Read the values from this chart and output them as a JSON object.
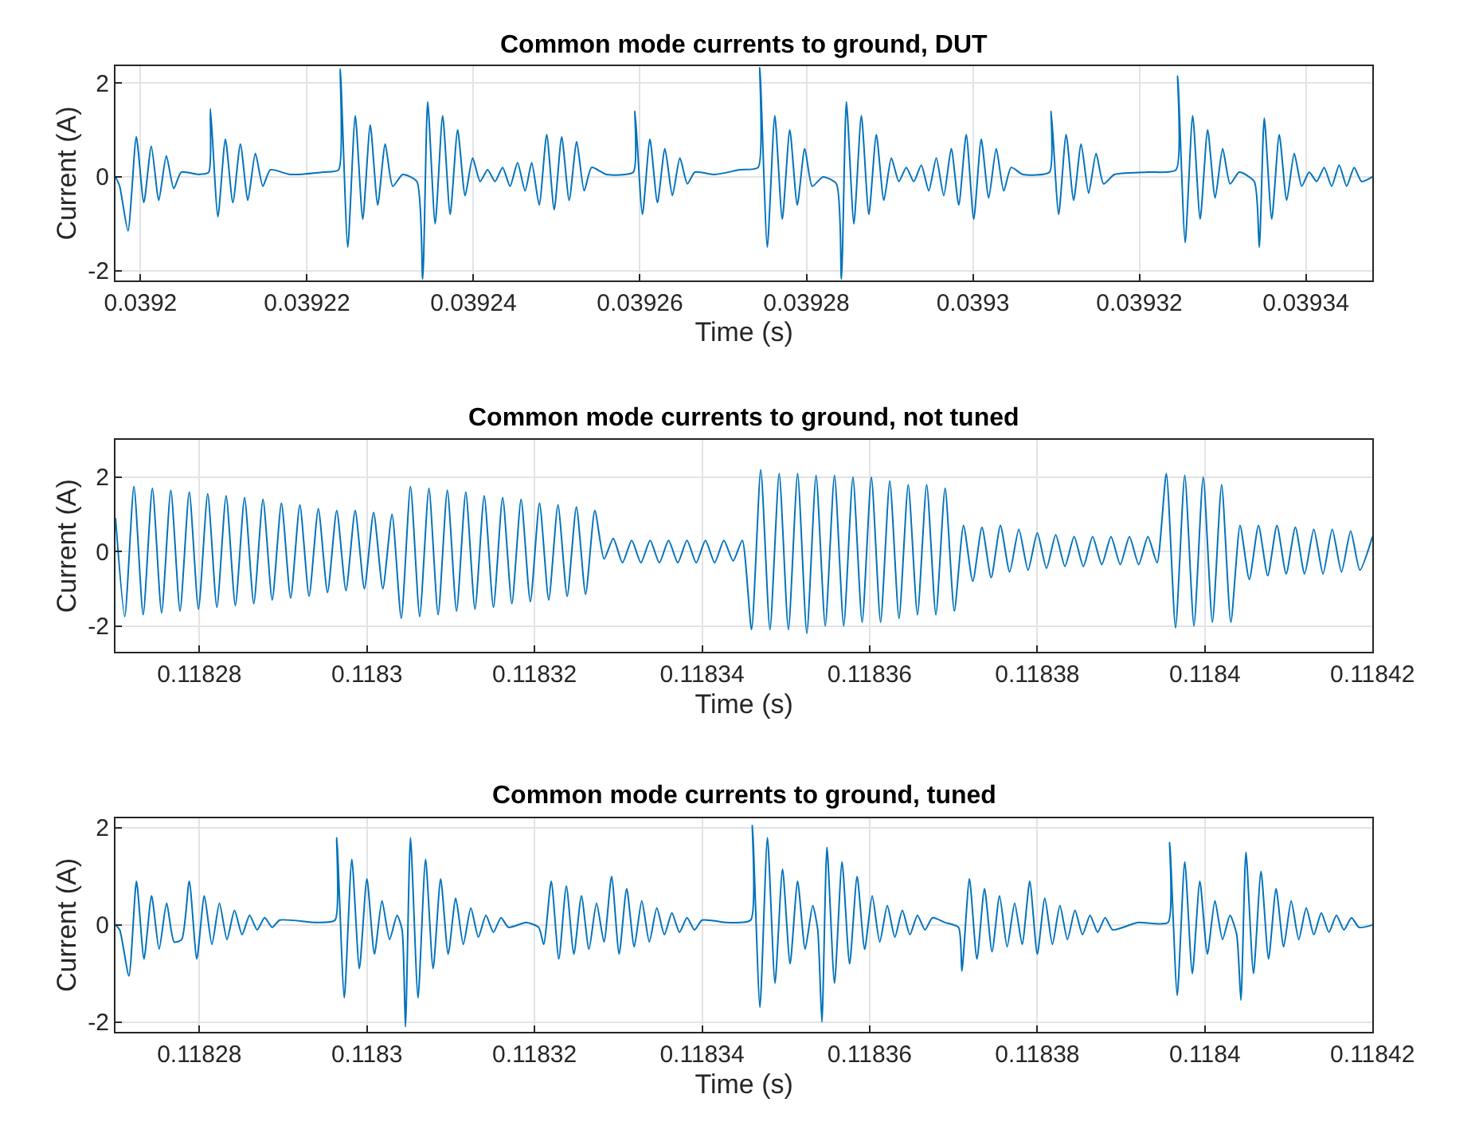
{
  "chart_data": [
    {
      "type": "line",
      "title": "Common mode currents to ground, DUT",
      "xlabel": "Time (s)",
      "ylabel": "Current (A)",
      "xlim": [
        0.039197,
        0.039348
      ],
      "ylim": [
        -2.2,
        2.35
      ],
      "xticks": [
        0.0392,
        0.03922,
        0.03924,
        0.03926,
        0.03928,
        0.0393,
        0.03932,
        0.03934
      ],
      "yticks": [
        -2,
        0,
        2
      ],
      "grid": true,
      "series": [
        {
          "color": "#0072bd",
          "x": [
            0.039197,
            0.0391975,
            0.0391985,
            0.0391995,
            0.0392004,
            0.0392013,
            0.0392022,
            0.0392031,
            0.039204,
            0.0392049,
            0.039207,
            0.0392082,
            0.0392084,
            0.0392093,
            0.0392102,
            0.0392111,
            0.039212,
            0.0392129,
            0.0392138,
            0.0392147,
            0.0392156,
            0.039218,
            0.039222,
            0.0392238,
            0.039224,
            0.0392249,
            0.0392258,
            0.0392267,
            0.0392276,
            0.0392285,
            0.0392294,
            0.0392303,
            0.0392315,
            0.0392332,
            0.0392339,
            0.0392345,
            0.0392354,
            0.0392363,
            0.0392372,
            0.0392381,
            0.039239,
            0.0392399,
            0.0392408,
            0.0392417,
            0.0392426,
            0.0392435,
            0.0392444,
            0.0392453,
            0.0392462,
            0.039247,
            0.0392479,
            0.0392488,
            0.0392497,
            0.0392506,
            0.0392515,
            0.0392524,
            0.0392533,
            0.0392542,
            0.039256,
            0.0392592,
            0.0392594,
            0.0392603,
            0.0392612,
            0.0392621,
            0.039263,
            0.0392639,
            0.0392648,
            0.0392657,
            0.0392666,
            0.039269,
            0.039272,
            0.0392742,
            0.0392744,
            0.0392753,
            0.0392762,
            0.0392771,
            0.039278,
            0.0392789,
            0.0392798,
            0.0392807,
            0.039282,
            0.0392836,
            0.0392842,
            0.0392848,
            0.0392857,
            0.0392866,
            0.0392875,
            0.0392884,
            0.0392893,
            0.0392902,
            0.0392911,
            0.039292,
            0.0392929,
            0.0392938,
            0.0392947,
            0.0392956,
            0.0392965,
            0.0392974,
            0.0392983,
            0.0392992,
            0.0393001,
            0.039301,
            0.0393019,
            0.0393028,
            0.0393037,
            0.0393046,
            0.039306,
            0.0393092,
            0.0393094,
            0.0393103,
            0.0393112,
            0.0393121,
            0.039313,
            0.0393139,
            0.0393148,
            0.0393157,
            0.039317,
            0.039321,
            0.0393244,
            0.0393246,
            0.0393255,
            0.0393264,
            0.0393273,
            0.0393282,
            0.0393291,
            0.03933,
            0.0393309,
            0.039332,
            0.0393338,
            0.0393344,
            0.039335,
            0.0393359,
            0.0393368,
            0.0393377,
            0.0393386,
            0.0393395,
            0.0393404,
            0.0393413,
            0.0393422,
            0.0393431,
            0.039344,
            0.0393449,
            0.0393458,
            0.0393467,
            0.039348
          ],
          "values": [
            0,
            -0.2,
            -1.15,
            0.85,
            -0.55,
            0.65,
            -0.5,
            0.45,
            -0.25,
            0.1,
            0.05,
            0.1,
            1.45,
            -0.85,
            0.8,
            -0.55,
            0.7,
            -0.5,
            0.5,
            -0.2,
            0.15,
            0.05,
            0.1,
            0.15,
            2.3,
            -1.5,
            1.3,
            -0.9,
            1.1,
            -0.6,
            0.7,
            -0.2,
            0.05,
            -0.1,
            -2.18,
            1.6,
            -1.0,
            1.3,
            -0.8,
            1.0,
            -0.4,
            0.4,
            -0.1,
            0.15,
            -0.1,
            0.2,
            -0.2,
            0.3,
            -0.3,
            0.3,
            -0.6,
            0.9,
            -0.7,
            0.85,
            -0.5,
            0.75,
            -0.3,
            0.2,
            0.05,
            0.1,
            1.4,
            -0.8,
            0.8,
            -0.55,
            0.6,
            -0.4,
            0.4,
            -0.15,
            0.1,
            0.05,
            0.15,
            0.2,
            2.33,
            -1.5,
            1.3,
            -0.9,
            1.0,
            -0.6,
            0.6,
            -0.2,
            0.0,
            -0.15,
            -2.18,
            1.6,
            -1.0,
            1.3,
            -0.8,
            0.9,
            -0.5,
            0.4,
            -0.1,
            0.2,
            -0.1,
            0.25,
            -0.3,
            0.4,
            -0.4,
            0.6,
            -0.6,
            0.9,
            -0.9,
            0.8,
            -0.45,
            0.6,
            -0.3,
            0.2,
            0.05,
            0.1,
            1.4,
            -0.8,
            0.9,
            -0.5,
            0.7,
            -0.35,
            0.5,
            -0.15,
            0.05,
            0.1,
            0.15,
            2.15,
            -1.4,
            1.3,
            -0.9,
            1.0,
            -0.45,
            0.6,
            -0.15,
            0.1,
            -0.1,
            -1.5,
            1.25,
            -0.9,
            0.9,
            -0.5,
            0.5,
            -0.2,
            0.1,
            -0.1,
            0.2,
            -0.2,
            0.25,
            -0.2,
            0.2,
            -0.1,
            0.0
          ]
        }
      ]
    },
    {
      "type": "line",
      "title": "Common mode currents to ground, not tuned",
      "xlabel": "Time (s)",
      "ylabel": "Current (A)",
      "xlim": [
        0.11827,
        0.11842
      ],
      "ylim": [
        -2.7,
        3
      ],
      "xticks": [
        0.11828,
        0.1183,
        0.11832,
        0.11834,
        0.11836,
        0.11838,
        0.1184,
        0.11842
      ],
      "yticks": [
        -2,
        0,
        2
      ],
      "grid": true,
      "series": [
        {
          "color": "#0072bd",
          "x": [
            0.11827,
            0.1182711,
            0.1182722,
            0.1182733,
            0.1182744,
            0.1182755,
            0.1182766,
            0.1182777,
            0.1182788,
            0.1182799,
            0.118281,
            0.1182821,
            0.1182832,
            0.1182843,
            0.1182854,
            0.1182865,
            0.1182876,
            0.1182887,
            0.1182898,
            0.1182909,
            0.118292,
            0.1182931,
            0.1182942,
            0.1182953,
            0.1182964,
            0.1182975,
            0.1182986,
            0.1182997,
            0.1183008,
            0.1183019,
            0.118303,
            0.1183041,
            0.1183052,
            0.1183063,
            0.1183074,
            0.1183085,
            0.1183096,
            0.1183107,
            0.1183118,
            0.1183129,
            0.118314,
            0.1183151,
            0.1183162,
            0.1183173,
            0.1183184,
            0.1183195,
            0.1183206,
            0.1183217,
            0.1183228,
            0.1183239,
            0.118325,
            0.1183261,
            0.1183272,
            0.1183283,
            0.1183294,
            0.1183305,
            0.1183316,
            0.1183327,
            0.1183338,
            0.1183349,
            0.118336,
            0.1183371,
            0.1183382,
            0.1183393,
            0.1183404,
            0.1183415,
            0.1183426,
            0.1183437,
            0.1183448,
            0.1183459,
            0.118347,
            0.1183481,
            0.1183492,
            0.1183503,
            0.1183514,
            0.1183525,
            0.1183536,
            0.1183547,
            0.1183558,
            0.1183569,
            0.118358,
            0.1183591,
            0.1183602,
            0.1183613,
            0.1183624,
            0.1183635,
            0.1183646,
            0.1183657,
            0.1183668,
            0.1183679,
            0.118369,
            0.1183701,
            0.1183712,
            0.1183723,
            0.1183734,
            0.1183745,
            0.1183756,
            0.1183767,
            0.1183778,
            0.1183789,
            0.11838,
            0.1183811,
            0.1183822,
            0.1183833,
            0.1183844,
            0.1183855,
            0.1183866,
            0.1183877,
            0.1183888,
            0.1183899,
            0.118391,
            0.1183921,
            0.1183932,
            0.1183943,
            0.1183954,
            0.1183965,
            0.1183976,
            0.1183987,
            0.1183998,
            0.1184009,
            0.118402,
            0.1184031,
            0.1184042,
            0.1184053,
            0.1184064,
            0.1184075,
            0.1184086,
            0.1184097,
            0.1184108,
            0.1184119,
            0.118413,
            0.1184141,
            0.1184152,
            0.1184163,
            0.1184174,
            0.1184185,
            0.11842
          ],
          "values": [
            0.9,
            -1.75,
            1.75,
            -1.7,
            1.7,
            -1.65,
            1.65,
            -1.6,
            1.6,
            -1.55,
            1.55,
            -1.5,
            1.5,
            -1.45,
            1.45,
            -1.4,
            1.4,
            -1.3,
            1.3,
            -1.25,
            1.25,
            -1.2,
            1.15,
            -1.1,
            1.1,
            -1.05,
            1.1,
            -1.0,
            1.05,
            -1.0,
            1.0,
            -1.8,
            1.75,
            -1.75,
            1.7,
            -1.7,
            1.65,
            -1.6,
            1.6,
            -1.55,
            1.5,
            -1.5,
            1.45,
            -1.4,
            1.4,
            -1.35,
            1.3,
            -1.3,
            1.25,
            -1.2,
            1.2,
            -1.15,
            1.1,
            -0.2,
            0.35,
            -0.3,
            0.3,
            -0.3,
            0.3,
            -0.3,
            0.3,
            -0.3,
            0.3,
            -0.3,
            0.3,
            -0.3,
            0.3,
            -0.25,
            0.3,
            -2.1,
            2.2,
            -2.1,
            2.1,
            -2.1,
            2.1,
            -2.2,
            2.05,
            -2.0,
            2.05,
            -2.0,
            2.0,
            -1.9,
            2.0,
            -1.9,
            1.9,
            -1.8,
            1.8,
            -1.7,
            1.8,
            -1.7,
            1.7,
            -1.6,
            0.7,
            -0.8,
            0.65,
            -0.7,
            0.7,
            -0.55,
            0.6,
            -0.5,
            0.5,
            -0.45,
            0.45,
            -0.4,
            0.4,
            -0.4,
            0.4,
            -0.35,
            0.4,
            -0.35,
            0.4,
            -0.35,
            0.4,
            -0.3,
            2.1,
            -2.05,
            2.05,
            -2.0,
            2.0,
            -1.9,
            1.8,
            -1.9,
            0.7,
            -0.75,
            0.7,
            -0.65,
            0.7,
            -0.6,
            0.65,
            -0.6,
            0.6,
            -0.6,
            0.6,
            -0.55,
            0.55,
            -0.5,
            0.4
          ]
        }
      ]
    },
    {
      "type": "line",
      "title": "Common mode currents to ground, tuned",
      "xlabel": "Time (s)",
      "ylabel": "Current (A)",
      "xlim": [
        0.11827,
        0.11842
      ],
      "ylim": [
        -2.2,
        2.2
      ],
      "xticks": [
        0.11828,
        0.1183,
        0.11832,
        0.11834,
        0.11836,
        0.11838,
        0.1184,
        0.11842
      ],
      "yticks": [
        -2,
        0,
        2
      ],
      "grid": true,
      "series": [
        {
          "color": "#0072bd",
          "x": [
            0.11827,
            0.1182705,
            0.1182716,
            0.1182725,
            0.1182734,
            0.1182743,
            0.1182752,
            0.1182761,
            0.118277,
            0.1182779,
            0.1182788,
            0.1182797,
            0.1182806,
            0.1182815,
            0.1182824,
            0.1182833,
            0.1182842,
            0.1182851,
            0.118286,
            0.1182869,
            0.1182878,
            0.1182887,
            0.1182896,
            0.118294,
            0.1182962,
            0.1182964,
            0.1182973,
            0.1182982,
            0.1182991,
            0.1183,
            0.1183009,
            0.1183018,
            0.1183027,
            0.1183036,
            0.1183042,
            0.1183046,
            0.1183052,
            0.1183061,
            0.118307,
            0.1183079,
            0.1183088,
            0.1183097,
            0.1183106,
            0.1183115,
            0.1183124,
            0.1183133,
            0.1183142,
            0.1183151,
            0.118316,
            0.1183169,
            0.118319,
            0.1183205,
            0.1183211,
            0.118322,
            0.1183229,
            0.1183238,
            0.1183247,
            0.1183256,
            0.1183265,
            0.1183274,
            0.1183283,
            0.1183292,
            0.1183301,
            0.118331,
            0.1183319,
            0.1183328,
            0.1183337,
            0.1183346,
            0.1183355,
            0.1183364,
            0.1183373,
            0.1183382,
            0.1183391,
            0.11834,
            0.118343,
            0.1183458,
            0.118346,
            0.1183469,
            0.1183478,
            0.1183487,
            0.1183496,
            0.1183505,
            0.1183514,
            0.1183523,
            0.1183532,
            0.1183538,
            0.1183543,
            0.1183549,
            0.1183558,
            0.1183567,
            0.1183576,
            0.1183585,
            0.1183594,
            0.1183603,
            0.1183612,
            0.1183621,
            0.118363,
            0.1183639,
            0.1183648,
            0.1183657,
            0.1183666,
            0.1183675,
            0.118369,
            0.1183706,
            0.118371,
            0.1183719,
            0.1183728,
            0.1183737,
            0.1183746,
            0.1183755,
            0.1183764,
            0.1183773,
            0.1183782,
            0.1183791,
            0.11838,
            0.1183809,
            0.1183818,
            0.1183827,
            0.1183836,
            0.1183845,
            0.1183854,
            0.1183863,
            0.1183872,
            0.1183881,
            0.118389,
            0.118392,
            0.1183956,
            0.1183958,
            0.1183967,
            0.1183976,
            0.1183985,
            0.1183994,
            0.1184003,
            0.1184012,
            0.1184021,
            0.118403,
            0.1184038,
            0.1184043,
            0.1184049,
            0.1184058,
            0.1184067,
            0.1184076,
            0.1184085,
            0.1184094,
            0.1184103,
            0.1184112,
            0.1184121,
            0.118413,
            0.1184139,
            0.1184148,
            0.1184157,
            0.1184166,
            0.1184175,
            0.1184184,
            0.11842
          ],
          "values": [
            0,
            -0.1,
            -1.05,
            0.9,
            -0.7,
            0.6,
            -0.5,
            0.45,
            -0.35,
            -0.3,
            0.9,
            -0.7,
            0.6,
            -0.4,
            0.45,
            -0.3,
            0.3,
            -0.2,
            0.2,
            -0.1,
            0.15,
            -0.05,
            0.1,
            0.05,
            0.1,
            1.8,
            -1.5,
            1.35,
            -0.9,
            0.95,
            -0.6,
            0.5,
            -0.3,
            0.2,
            -0.1,
            -2.1,
            1.8,
            -1.5,
            1.35,
            -0.9,
            0.95,
            -0.6,
            0.55,
            -0.4,
            0.35,
            -0.25,
            0.2,
            -0.15,
            0.15,
            -0.05,
            0.05,
            -0.05,
            -0.4,
            0.9,
            -0.7,
            0.8,
            -0.6,
            0.6,
            -0.5,
            0.45,
            -0.35,
            1.0,
            -0.6,
            0.75,
            -0.45,
            0.5,
            -0.35,
            0.35,
            -0.2,
            0.25,
            -0.15,
            0.15,
            -0.1,
            0.1,
            0.05,
            0.1,
            2.05,
            -1.7,
            1.8,
            -1.2,
            1.15,
            -0.8,
            0.9,
            -0.5,
            0.4,
            -0.1,
            -2.0,
            1.6,
            -1.2,
            1.3,
            -0.8,
            1.0,
            -0.5,
            0.6,
            -0.35,
            0.4,
            -0.25,
            0.3,
            -0.2,
            0.2,
            -0.1,
            0.15,
            0.05,
            -0.05,
            -0.95,
            0.95,
            -0.7,
            0.75,
            -0.55,
            0.6,
            -0.45,
            0.45,
            -0.4,
            0.9,
            -0.6,
            0.55,
            -0.4,
            0.4,
            -0.3,
            0.3,
            -0.2,
            0.2,
            -0.15,
            0.15,
            -0.1,
            0.05,
            0.05,
            1.7,
            -1.45,
            1.3,
            -1.0,
            0.9,
            -0.6,
            0.5,
            -0.3,
            0.2,
            -0.2,
            -1.55,
            1.5,
            -1.0,
            1.1,
            -0.7,
            0.75,
            -0.45,
            0.5,
            -0.3,
            0.35,
            -0.2,
            0.25,
            -0.15,
            0.2,
            -0.1,
            0.15,
            -0.05,
            0
          ]
        }
      ]
    }
  ]
}
